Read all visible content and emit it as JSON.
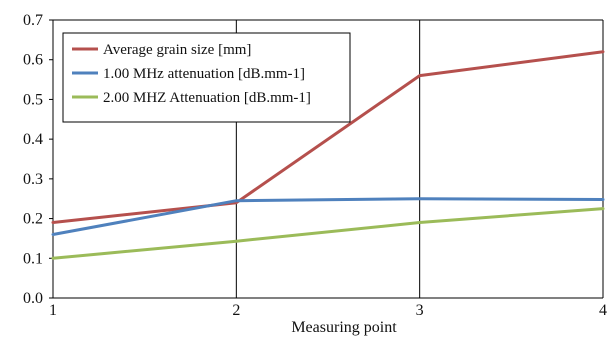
{
  "chart_data": {
    "type": "line",
    "x": [
      1,
      2,
      3,
      4
    ],
    "x_ticks": [
      "1",
      "2",
      "3",
      "4"
    ],
    "y_ticks": [
      "0.0",
      "0.1",
      "0.2",
      "0.3",
      "0.4",
      "0.5",
      "0.6",
      "0.7"
    ],
    "xlim": [
      1,
      4
    ],
    "ylim": [
      0,
      0.7
    ],
    "xlabel": "Measuring point",
    "ylabel": "",
    "title": "",
    "grid": "vertical lines at each x tick",
    "legend_position": "top-left",
    "series": [
      {
        "name": "Average grain size [mm]",
        "color": "#b5504d",
        "values": [
          0.19,
          0.24,
          0.56,
          0.62
        ]
      },
      {
        "name": "1.00 MHz attenuation [dB.mm-1]",
        "color": "#4f81bd",
        "values": [
          0.16,
          0.245,
          0.25,
          0.248
        ]
      },
      {
        "name": "2.00 MHZ Attenuation  [dB.mm-1]",
        "color": "#9bbb59",
        "values": [
          0.1,
          0.143,
          0.19,
          0.225
        ]
      }
    ]
  }
}
